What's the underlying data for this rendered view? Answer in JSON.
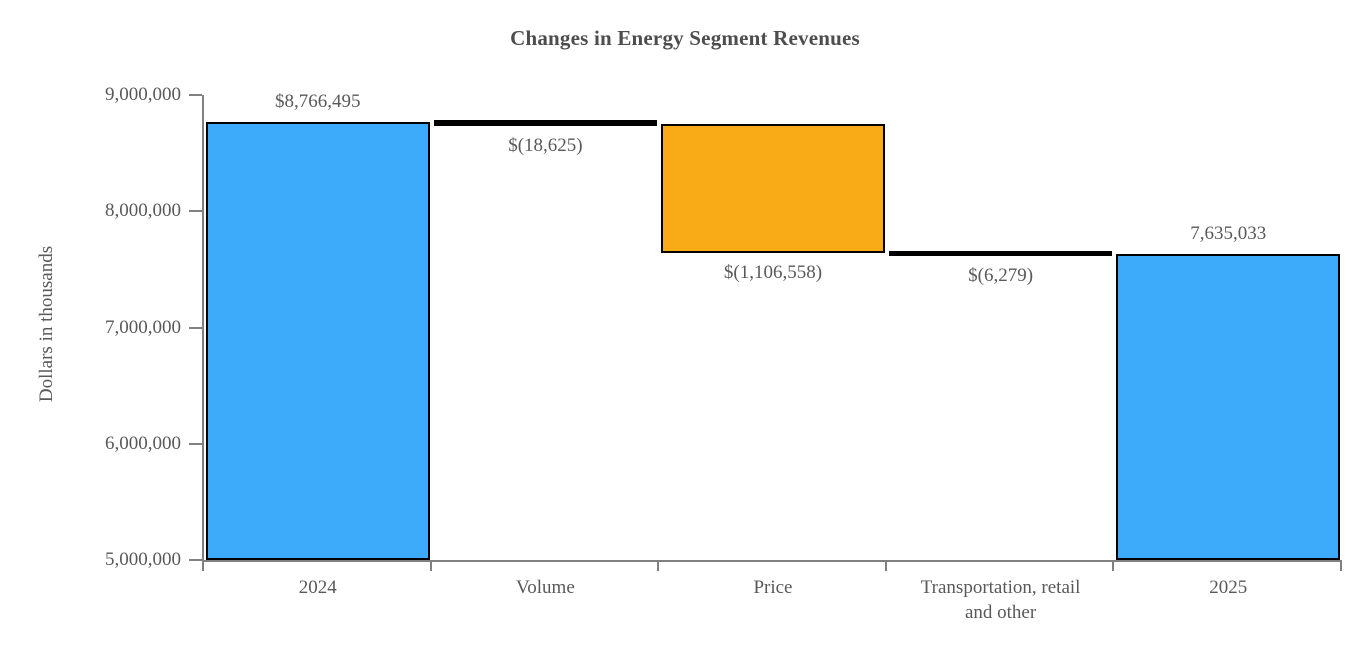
{
  "title": "Changes in Energy Segment Revenues",
  "chart_data": {
    "type": "bar",
    "subtype": "waterfall",
    "title": "Changes in Energy Segment Revenues",
    "xlabel": "",
    "ylabel": "Dollars in thousands",
    "ylim": [
      5000000,
      9000000
    ],
    "ytick_step": 1000000,
    "ytick_labels": [
      "9,000,000",
      "8,000,000",
      "7,000,000",
      "6,000,000",
      "5,000,000"
    ],
    "categories": [
      "2024",
      "Volume",
      "Price",
      "Transportation, retail\nand other",
      "2025"
    ],
    "grid": false,
    "legend": null,
    "bars": [
      {
        "category": "2024",
        "kind": "total",
        "start": 5000000,
        "end": 8766495,
        "value": 8766495,
        "label": "$8,766,495",
        "label_position": "above",
        "color": "#3dabfa"
      },
      {
        "category": "Volume",
        "kind": "delta",
        "start": 8766495,
        "end": 8747870,
        "value": -18625,
        "label": "$(18,625)",
        "label_position": "below",
        "color": "#000000"
      },
      {
        "category": "Price",
        "kind": "delta",
        "start": 8747870,
        "end": 7641312,
        "value": -1106558,
        "label": "$(1,106,558)",
        "label_position": "below",
        "color": "#f8ab17"
      },
      {
        "category": "Transportation, retail\nand other",
        "kind": "delta",
        "start": 7641312,
        "end": 7635033,
        "value": -6279,
        "label": "$(6,279)",
        "label_position": "below",
        "color": "#000000"
      },
      {
        "category": "2025",
        "kind": "total",
        "start": 5000000,
        "end": 7635033,
        "value": 7635033,
        "label": "7,635,033",
        "label_position": "above",
        "color": "#3dabfa"
      }
    ],
    "colors": {
      "total_bar": "#3dabfa",
      "decrease_bar": "#f8ab17",
      "small_delta_bar": "#000000",
      "bar_border": "#000000",
      "axis": "#808080",
      "text": "#595959",
      "title_text": "#4d4d4d"
    }
  }
}
